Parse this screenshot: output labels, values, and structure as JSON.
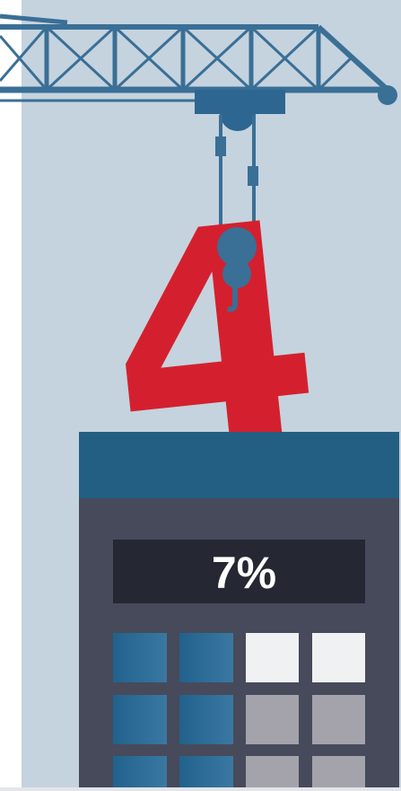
{
  "hero_digit": "4",
  "display": "7%"
}
